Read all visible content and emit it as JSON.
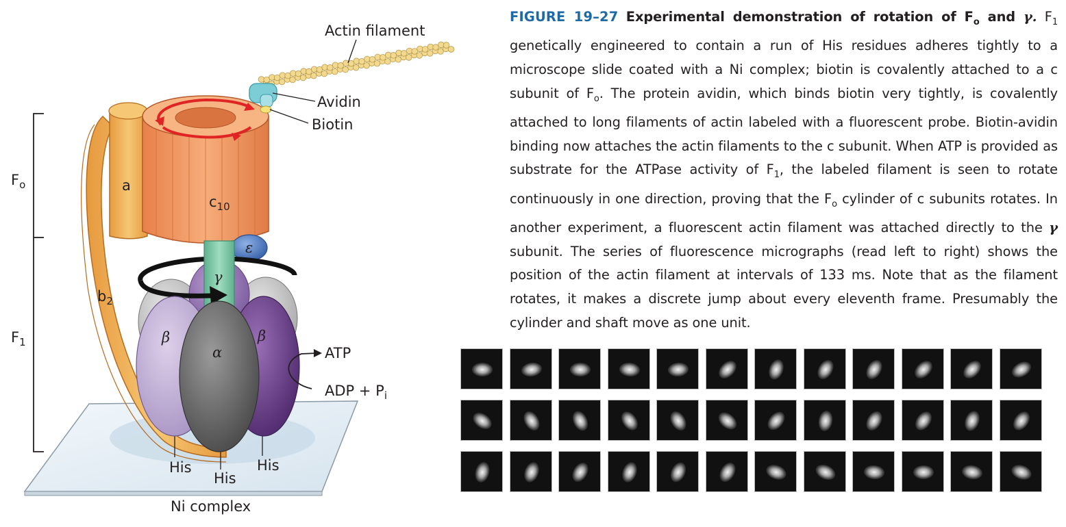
{
  "diagram": {
    "labels": {
      "actin_filament": "Actin filament",
      "avidin": "Avidin",
      "biotin": "Biotin",
      "fo": "F",
      "fo_sub": "o",
      "f1": "F",
      "f1_sub": "1",
      "a": "a",
      "c10": "c",
      "c10_sub": "10",
      "b2": "b",
      "b2_sub": "2",
      "epsilon": "ε",
      "gamma": "γ",
      "beta_left": "β",
      "beta_right": "β",
      "alpha": "α",
      "atp": "ATP",
      "adp_pi": "ADP + P",
      "adp_pi_sub": "i",
      "his_left": "His",
      "his_center": "His",
      "his_right": "His",
      "ni_complex": "Ni complex"
    },
    "colors": {
      "c_ring": "#f0955a",
      "a_subunit": "#f2b45c",
      "rotation_arrow": "#e02424",
      "gamma_shaft": "#7fc7a6",
      "epsilon": "#4f7dc9",
      "alpha": "#6e6e6e",
      "beta_light": "#c9b8dc",
      "beta_dark": "#6e3f8f",
      "avidin": "#7ccdd6",
      "biotin": "#f5e27a",
      "actin": "#f3d98f"
    }
  },
  "caption": {
    "figure_number": "FIGURE 19–27",
    "title": "Experimental demonstration of rotation of F",
    "title_sub": "o",
    "title_and": " and ",
    "title_gamma": "γ.",
    "body_1": "F",
    "body_1_sub": "1",
    "body_2": " genetically engineered to contain a run of His residues adheres tightly to a microscope slide coated with a Ni complex; biotin is covalently attached to a c subunit of F",
    "body_2_sub": "o",
    "body_3": ". The protein avidin, which binds biotin very tightly, is covalently attached to long filaments of actin labeled with a fluorescent probe. Biotin-avidin binding now attaches the actin filaments to the c subunit. When ATP is provided as substrate for the ATPase activity of F",
    "body_3_sub": "1",
    "body_4": ", the labeled filament is seen to rotate continuously in one direction, proving that the F",
    "body_4_sub": "o",
    "body_5": " cylinder of c subunits rotates. In another experiment, a fluorescent actin filament was attached directly to the ",
    "body_5_gamma": "γ",
    "body_6": " subunit. The series of fluorescence micrographs (read left to right) shows the position of the actin filament at intervals of 133 ms. Note that as the filament rotates, it makes a discrete jump about every eleventh frame. Presumably the cylinder and shaft move as one unit."
  },
  "micrographs": {
    "rows": 3,
    "columns": 12,
    "blob_angles_deg": [
      [
        0,
        -10,
        0,
        5,
        -5,
        -45,
        -70,
        -60,
        -60,
        -45,
        -45,
        -30
      ],
      [
        35,
        60,
        65,
        55,
        60,
        40,
        -50,
        -80,
        -60,
        -55,
        -70,
        -55
      ],
      [
        -75,
        -70,
        -60,
        -70,
        -65,
        -60,
        20,
        25,
        5,
        0,
        10,
        20
      ]
    ]
  }
}
